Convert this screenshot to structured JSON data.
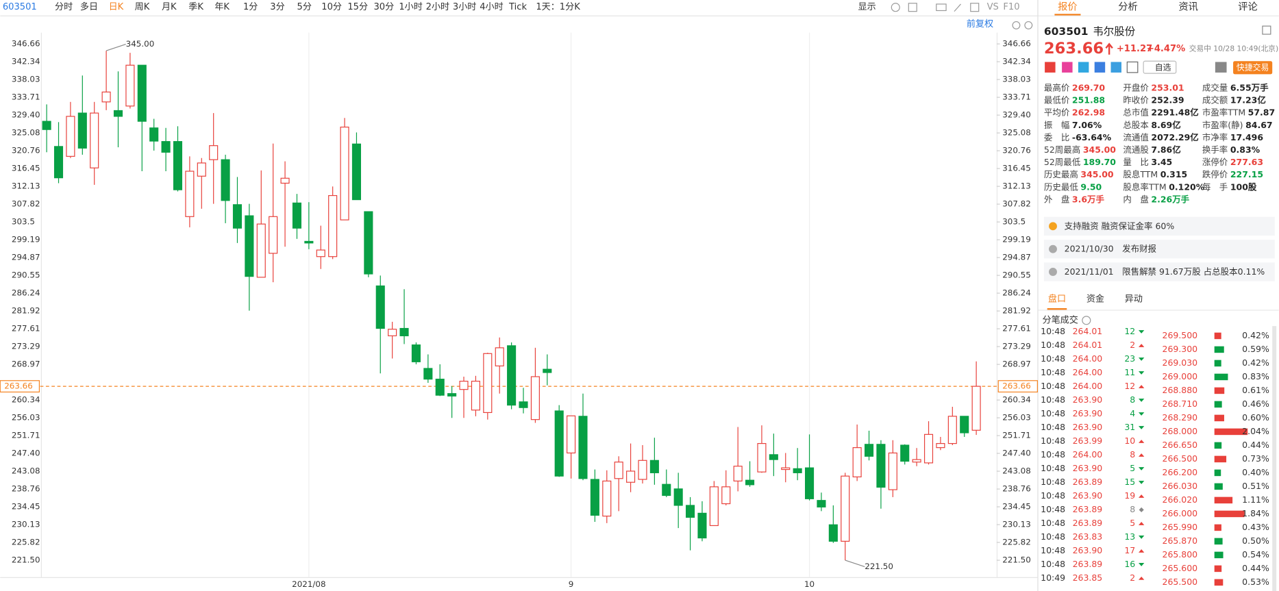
{
  "toolbar": {
    "code": "603501",
    "periods": [
      "分时",
      "多日",
      "日K",
      "周K",
      "月K",
      "季K",
      "年K",
      "1分",
      "3分",
      "5分",
      "10分",
      "15分",
      "30分",
      "1小时",
      "2小时",
      "3小时",
      "4小时",
      "Tick"
    ],
    "active_period": 2,
    "range": "1天：1分K",
    "display": "显示",
    "vs": "VS",
    "f10": "F10"
  },
  "chart_data": {
    "type": "candlestick",
    "adjust": "前复权",
    "categories": [
      null,
      null,
      null,
      null,
      null,
      null,
      null,
      null,
      null,
      null,
      null,
      null,
      null,
      null,
      null,
      null,
      null,
      null,
      null,
      null,
      null,
      null,
      "2021/08",
      null,
      null,
      null,
      null,
      null,
      null,
      null,
      null,
      null,
      null,
      null,
      null,
      null,
      null,
      null,
      null,
      null,
      null,
      null,
      null,
      null,
      "9",
      null,
      null,
      null,
      null,
      null,
      null,
      null,
      null,
      null,
      null,
      null,
      null,
      null,
      null,
      null,
      null,
      null,
      null,
      null,
      "10",
      null,
      null,
      null,
      null,
      null,
      null,
      null,
      null,
      null,
      null,
      null,
      null,
      null,
      null
    ],
    "open": [
      327.9,
      321.8,
      319.4,
      329.9,
      316.6,
      332.6,
      330.5,
      331.6,
      341.5,
      326.3,
      323.0,
      323.0,
      304.8,
      314.6,
      318.6,
      318.6,
      307.7,
      305.0,
      290.1,
      295.9,
      312.9,
      308.1,
      298.8,
      295.1,
      295.1,
      304.0,
      322.4,
      306.0,
      288.0,
      275.9,
      277.7,
      273.7,
      268.0,
      265.4,
      261.9,
      262.9,
      257.9,
      257.3,
      268.6,
      273.5,
      259.9,
      255.6,
      267.8,
      257.7,
      247.5,
      256.4,
      241.1,
      232.2,
      241.3,
      240.4,
      241.1,
      245.7,
      239.9,
      238.8,
      234.8,
      232.9,
      229.9,
      235.2,
      240.7,
      240.9,
      242.9,
      247.1,
      243.5,
      243.7,
      243.9,
      236.0,
      230.1,
      226.1,
      241.7,
      249.6,
      249.6,
      238.6,
      249.4,
      245.3,
      245.1,
      248.8,
      249.8,
      256.4,
      253.01
    ],
    "high": [
      332.0,
      327.7,
      332.6,
      339.0,
      332.6,
      345.0,
      340.0,
      344.5,
      341.5,
      328.5,
      326.3,
      326.7,
      319.4,
      319.0,
      329.9,
      319.8,
      314.4,
      307.9,
      316.0,
      322.5,
      318.2,
      310.3,
      308.3,
      302.6,
      312.1,
      328.7,
      325.2,
      306.0,
      290.5,
      279.3,
      287.2,
      274.3,
      271.4,
      269.0,
      263.7,
      266.0,
      266.2,
      271.8,
      275.5,
      274.3,
      263.3,
      273.0,
      271.4,
      259.1,
      256.5,
      261.9,
      243.5,
      243.3,
      246.7,
      249.8,
      249.4,
      251.2,
      243.5,
      242.7,
      236.8,
      235.8,
      240.7,
      243.3,
      253.8,
      245.5,
      254.2,
      252.2,
      247.5,
      248.7,
      252.0,
      237.9,
      234.8,
      242.7,
      254.4,
      252.9,
      250.6,
      250.6,
      249.6,
      248.7,
      255.2,
      251.4,
      258.7,
      256.4,
      269.7
    ],
    "low": [
      320.4,
      312.9,
      319.0,
      319.8,
      312.5,
      330.6,
      321.6,
      331.0,
      315.8,
      320.8,
      315.8,
      310.9,
      302.2,
      306.7,
      307.9,
      303.2,
      298.4,
      282.0,
      290.1,
      288.9,
      297.5,
      299.4,
      296.9,
      292.1,
      294.5,
      304.0,
      308.9,
      290.1,
      266.8,
      270.4,
      273.9,
      269.0,
      264.5,
      261.3,
      256.0,
      256.0,
      256.4,
      255.6,
      261.9,
      258.1,
      257.1,
      254.8,
      263.9,
      241.7,
      241.3,
      240.9,
      230.8,
      230.5,
      233.4,
      238.0,
      240.1,
      239.8,
      236.8,
      229.3,
      223.9,
      226.1,
      229.9,
      234.8,
      238.2,
      239.3,
      242.7,
      241.9,
      240.4,
      240.9,
      236.0,
      233.4,
      225.7,
      221.5,
      240.7,
      245.7,
      234.0,
      236.8,
      244.7,
      244.3,
      244.7,
      248.2,
      249.4,
      251.4,
      251.88
    ],
    "close": [
      325.9,
      314.2,
      329.1,
      321.4,
      329.9,
      335.0,
      329.1,
      341.5,
      327.9,
      323.1,
      320.4,
      311.3,
      315.8,
      317.8,
      322.0,
      308.7,
      302.0,
      290.3,
      303.0,
      304.8,
      314.1,
      302.0,
      298.4,
      296.7,
      309.9,
      326.5,
      308.9,
      290.9,
      277.7,
      277.5,
      275.9,
      269.6,
      265.4,
      261.5,
      261.3,
      264.9,
      264.9,
      271.6,
      273.0,
      259.1,
      258.5,
      266.0,
      267.0,
      241.9,
      256.5,
      241.3,
      232.4,
      240.7,
      245.3,
      243.1,
      245.7,
      242.7,
      237.2,
      234.8,
      231.9,
      226.9,
      239.3,
      239.3,
      244.3,
      239.8,
      249.8,
      245.9,
      243.9,
      242.7,
      236.4,
      234.4,
      226.1,
      241.9,
      248.8,
      246.7,
      239.2,
      247.5,
      245.5,
      245.9,
      252.0,
      249.8,
      256.4,
      252.39,
      263.66
    ],
    "up_color": "#e8403a",
    "down_color": "#08a045",
    "ylim": [
      217.6,
      349.4
    ],
    "yticks": [
      346.66,
      342.34,
      338.03,
      333.71,
      {
        "value": 329.4,
        "label": "329.40"
      },
      325.08,
      320.76,
      316.45,
      312.13,
      307.82,
      303.5,
      {
        "value": 299.19,
        "label": "299.19"
      },
      294.87,
      290.55,
      286.24,
      281.92,
      277.61,
      273.29,
      268.97,
      260.34,
      256.03,
      251.71,
      {
        "value": 247.4,
        "label": "247.40"
      },
      243.08,
      238.76,
      234.45,
      230.13,
      225.82,
      {
        "value": 221.5,
        "label": "221.50"
      }
    ],
    "last": {
      "value": 263.66,
      "label": "263.66"
    },
    "high_label": {
      "value": 345,
      "label": "345.00"
    },
    "low_label": {
      "value": 221.5,
      "label": "221.50"
    }
  },
  "quote": {
    "tabs": [
      "报价",
      "分析",
      "资讯",
      "评论"
    ],
    "active_tab": 0,
    "code": "603501",
    "name": "韦尔股份",
    "price": 263.66,
    "change": "+11.27",
    "change_pct": "+4.47%",
    "status": "交易中 10/28 10:49(北京)",
    "watch": "自选",
    "trade": "快捷交易",
    "stats": [
      [
        {
          "label": "最高价",
          "value": "269.70",
          "color": "#e8403a"
        },
        {
          "label": "最低价",
          "value": "251.88",
          "color": "#08a045"
        },
        {
          "label": "平均价",
          "value": "262.98",
          "color": "#e8403a"
        },
        {
          "label": "振　幅",
          "value": "7.06%",
          "color": "#222"
        },
        {
          "label": "委　比",
          "value": "-63.64%",
          "color": "#222"
        },
        {
          "label": "52周最高",
          "value": "345.00",
          "color": "#e8403a"
        },
        {
          "label": "52周最低",
          "value": "189.70",
          "color": "#08a045"
        },
        {
          "label": "历史最高",
          "value": "345.00",
          "color": "#e8403a"
        },
        {
          "label": "历史最低",
          "value": "9.50",
          "color": "#08a045"
        },
        {
          "label": "外　盘",
          "value": "3.6万手",
          "color": "#e8403a"
        }
      ],
      [
        {
          "label": "开盘价",
          "value": "253.01",
          "color": "#e8403a"
        },
        {
          "label": "昨收价",
          "value": "252.39",
          "color": "#222"
        },
        {
          "label": "总市值",
          "value": "2291.48亿",
          "color": "#222"
        },
        {
          "label": "总股本",
          "value": "8.69亿",
          "color": "#222"
        },
        {
          "label": "流通值",
          "value": "2072.29亿",
          "color": "#222"
        },
        {
          "label": "流通股",
          "value": "7.86亿",
          "color": "#222"
        },
        {
          "label": "量　比",
          "value": "3.45",
          "color": "#222"
        },
        {
          "label": "股息TTM",
          "value": "0.315",
          "color": "#222"
        },
        {
          "label": "股息率TTM",
          "value": "0.120%",
          "color": "#222"
        },
        {
          "label": "内　盘",
          "value": "2.26万手",
          "color": "#08a045"
        }
      ],
      [
        {
          "label": "成交量",
          "value": "6.55万手",
          "color": "#222"
        },
        {
          "label": "成交额",
          "value": "17.23亿",
          "color": "#222"
        },
        {
          "label": "市盈率TTM",
          "value": "57.87",
          "color": "#222"
        },
        {
          "label": "市盈率(静)",
          "value": "84.67",
          "color": "#222"
        },
        {
          "label": "市净率",
          "value": "17.496",
          "color": "#222"
        },
        {
          "label": "换手率",
          "value": "0.83%",
          "color": "#222"
        },
        {
          "label": "涨停价",
          "value": "277.63",
          "color": "#e8403a"
        },
        {
          "label": "跌停价",
          "value": "227.15",
          "color": "#08a045"
        },
        {
          "label": "每　手",
          "value": "100股",
          "color": "#222"
        }
      ]
    ],
    "notices": [
      "支持融资 融资保证金率 60%",
      "2021/10/30　发布财报",
      "2021/11/01　限售解禁 91.67万股 占总股本0.11%"
    ],
    "subtabs": [
      "盘口",
      "资金",
      "异动"
    ],
    "ticks_title": "分笔成交",
    "ticks": [
      [
        "10:48",
        "264.01",
        "12",
        "down"
      ],
      [
        "10:48",
        "264.01",
        "2",
        "up"
      ],
      [
        "10:48",
        "264.00",
        "23",
        "down"
      ],
      [
        "10:48",
        "264.00",
        "11",
        "down"
      ],
      [
        "10:48",
        "264.00",
        "12",
        "up"
      ],
      [
        "10:48",
        "263.90",
        "8",
        "down"
      ],
      [
        "10:48",
        "263.90",
        "4",
        "down"
      ],
      [
        "10:48",
        "263.90",
        "31",
        "down"
      ],
      [
        "10:48",
        "263.99",
        "10",
        "up"
      ],
      [
        "10:48",
        "264.00",
        "8",
        "up"
      ],
      [
        "10:48",
        "263.90",
        "5",
        "down"
      ],
      [
        "10:48",
        "263.89",
        "15",
        "down"
      ],
      [
        "10:48",
        "263.90",
        "19",
        "up"
      ],
      [
        "10:48",
        "263.89",
        "8",
        "none"
      ],
      [
        "10:48",
        "263.89",
        "5",
        "up"
      ],
      [
        "10:48",
        "263.83",
        "13",
        "down"
      ],
      [
        "10:48",
        "263.90",
        "17",
        "up"
      ],
      [
        "10:48",
        "263.89",
        "16",
        "down"
      ],
      [
        "10:49",
        "263.85",
        "2",
        "up"
      ]
    ],
    "distribution": [
      {
        "price": "269.500",
        "pct": {
          "value": 0.42,
          "label": "0.42%"
        },
        "color": "#e8403a"
      },
      {
        "price": "269.300",
        "pct": {
          "value": 0.59,
          "label": "0.59%"
        },
        "color": "#08a045"
      },
      {
        "price": "269.030",
        "pct": {
          "value": 0.42,
          "label": "0.42%"
        },
        "color": "#08a045"
      },
      {
        "price": "269.000",
        "pct": {
          "value": 0.83,
          "label": "0.83%"
        },
        "color": "#08a045"
      },
      {
        "price": "268.880",
        "pct": {
          "value": 0.61,
          "label": "0.61%"
        },
        "color": "#e8403a"
      },
      {
        "price": "268.710",
        "pct": {
          "value": 0.46,
          "label": "0.46%"
        },
        "color": "#08a045"
      },
      {
        "price": "268.290",
        "pct": {
          "value": 0.6,
          "label": "0.60%"
        },
        "color": "#e8403a"
      },
      {
        "price": "268.000",
        "pct": {
          "value": 2.04,
          "label": "2.04%"
        },
        "color": "#e8403a"
      },
      {
        "price": "266.650",
        "pct": {
          "value": 0.44,
          "label": "0.44%"
        },
        "color": "#08a045"
      },
      {
        "price": "266.500",
        "pct": {
          "value": 0.73,
          "label": "0.73%"
        },
        "color": "#e8403a"
      },
      {
        "price": "266.200",
        "pct": {
          "value": 0.4,
          "label": "0.40%"
        },
        "color": "#08a045"
      },
      {
        "price": "266.030",
        "pct": {
          "value": 0.51,
          "label": "0.51%"
        },
        "color": "#08a045"
      },
      {
        "price": "266.020",
        "pct": {
          "value": 1.11,
          "label": "1.11%"
        },
        "color": "#e8403a"
      },
      {
        "price": "266.000",
        "pct": {
          "value": 1.84,
          "label": "1.84%"
        },
        "color": "#e8403a"
      },
      {
        "price": "265.990",
        "pct": {
          "value": 0.43,
          "label": "0.43%"
        },
        "color": "#e8403a"
      },
      {
        "price": "265.870",
        "pct": {
          "value": 0.5,
          "label": "0.50%"
        },
        "color": "#08a045"
      },
      {
        "price": "265.800",
        "pct": {
          "value": 0.54,
          "label": "0.54%"
        },
        "color": "#08a045"
      },
      {
        "price": "265.600",
        "pct": {
          "value": 0.44,
          "label": "0.44%"
        },
        "color": "#e8403a"
      },
      {
        "price": "265.500",
        "pct": {
          "value": 0.53,
          "label": "0.53%"
        },
        "color": "#e8403a"
      }
    ]
  }
}
